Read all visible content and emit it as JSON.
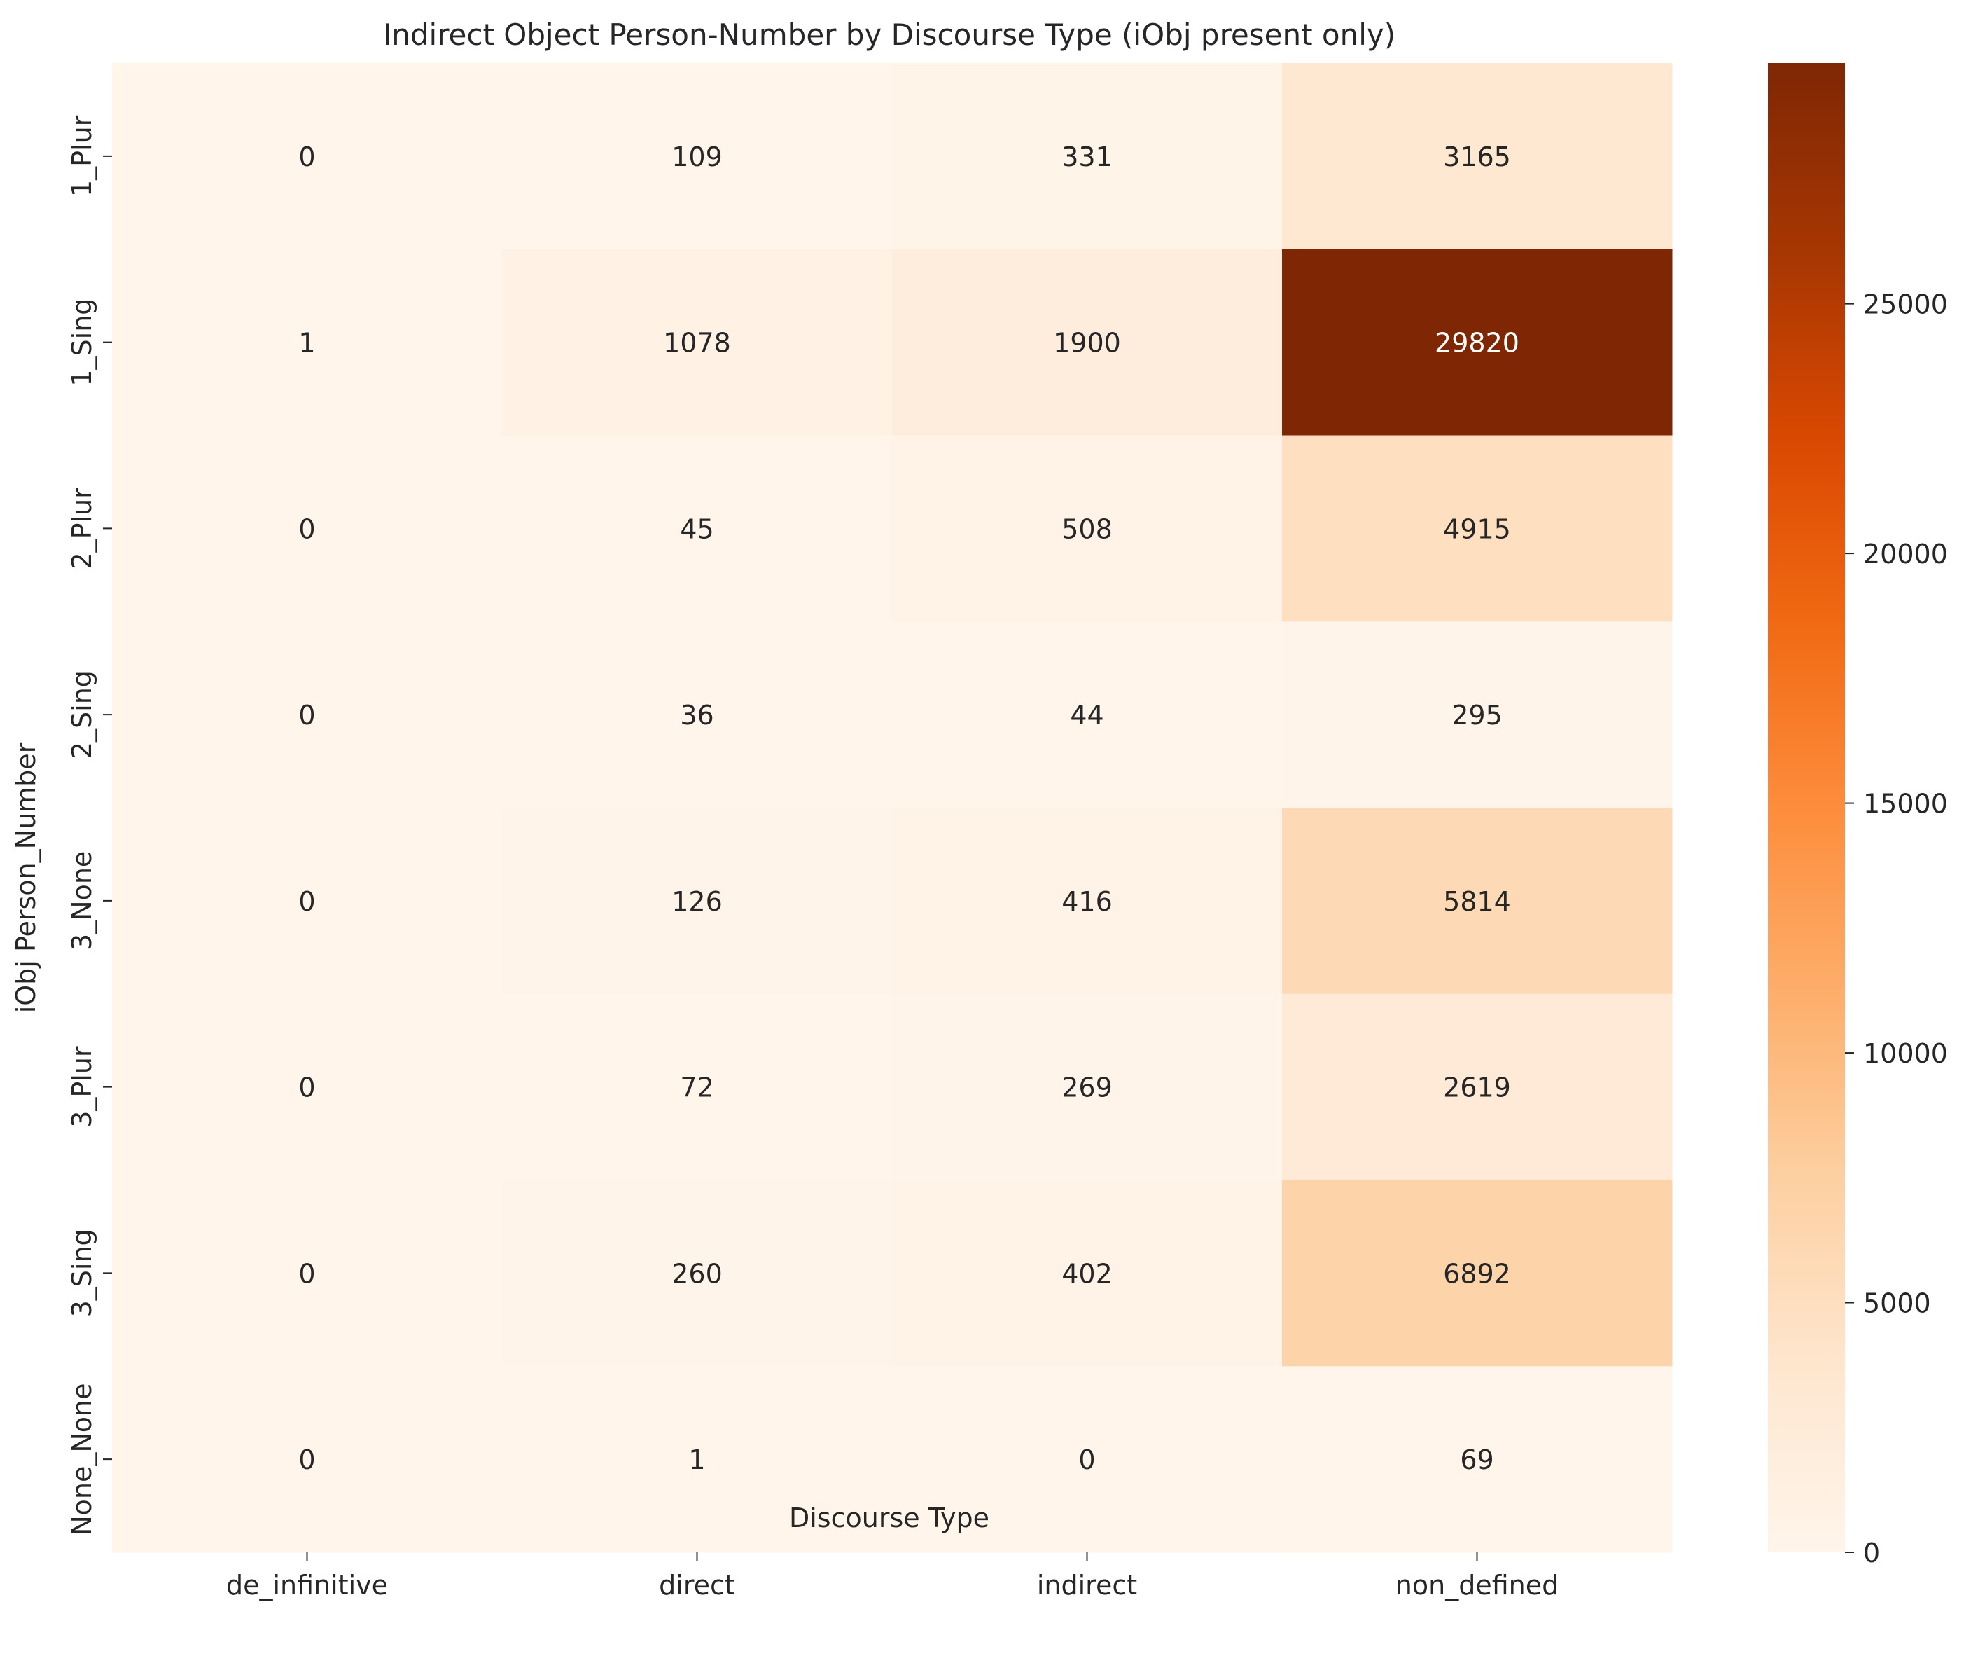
{
  "chart_data": {
    "type": "heatmap",
    "title": "Indirect Object Person-Number by Discourse Type (iObj present only)",
    "xlabel": "Discourse Type",
    "ylabel": "iObj Person_Number",
    "x_categories": [
      "de_infinitive",
      "direct",
      "indirect",
      "non_defined"
    ],
    "y_categories": [
      "1_Plur",
      "1_Sing",
      "2_Plur",
      "2_Sing",
      "3_None",
      "3_Plur",
      "3_Sing",
      "None_None"
    ],
    "values": [
      [
        0,
        109,
        331,
        3165
      ],
      [
        1,
        1078,
        1900,
        29820
      ],
      [
        0,
        45,
        508,
        4915
      ],
      [
        0,
        36,
        44,
        295
      ],
      [
        0,
        126,
        416,
        5814
      ],
      [
        0,
        72,
        269,
        2619
      ],
      [
        0,
        260,
        402,
        6892
      ],
      [
        0,
        1,
        0,
        69
      ]
    ],
    "colormap": "Oranges",
    "vmin": 0,
    "vmax": 29820,
    "colorbar": {
      "ticks": [
        0,
        5000,
        10000,
        15000,
        20000,
        25000
      ],
      "tick_labels": [
        "0",
        "5000",
        "10000",
        "15000",
        "20000",
        "25000"
      ],
      "placement": "right"
    },
    "grid": false
  }
}
